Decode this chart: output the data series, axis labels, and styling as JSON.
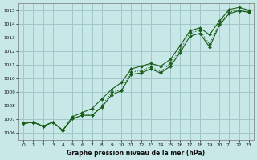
{
  "x": [
    0,
    1,
    2,
    3,
    4,
    5,
    6,
    7,
    8,
    9,
    10,
    11,
    12,
    13,
    14,
    15,
    16,
    17,
    18,
    19,
    20,
    21,
    22,
    23
  ],
  "line_dotted": [
    1006.7,
    1006.8,
    1006.5,
    1006.8,
    1006.2,
    1007.05,
    1007.3,
    1007.3,
    1008.0,
    1009.0,
    1009.15,
    1010.5,
    1010.55,
    1010.85,
    1010.5,
    1011.1,
    1012.1,
    1013.35,
    1013.5,
    1012.5,
    1014.0,
    1014.85,
    1015.0,
    1014.85
  ],
  "line_upper": [
    1006.7,
    1006.8,
    1006.5,
    1006.8,
    1006.2,
    1007.2,
    1007.5,
    1007.8,
    1008.5,
    1009.2,
    1009.7,
    1010.7,
    1010.9,
    1011.1,
    1010.9,
    1011.4,
    1012.4,
    1013.5,
    1013.7,
    1013.2,
    1014.2,
    1015.05,
    1015.2,
    1015.0
  ],
  "line_lower": [
    1006.7,
    1006.8,
    1006.5,
    1006.8,
    1006.2,
    1007.05,
    1007.3,
    1007.3,
    1007.9,
    1008.8,
    1009.1,
    1010.3,
    1010.4,
    1010.7,
    1010.4,
    1010.9,
    1011.9,
    1013.1,
    1013.3,
    1012.3,
    1013.9,
    1014.75,
    1014.95,
    1014.85
  ],
  "bg_color": "#c8e8e8",
  "grid_color": "#a0c8c8",
  "line_color": "#1a5c1a",
  "xlabel": "Graphe pression niveau de la mer (hPa)",
  "ylim": [
    1005.5,
    1015.5
  ],
  "yticks": [
    1006,
    1007,
    1008,
    1009,
    1010,
    1011,
    1012,
    1013,
    1014,
    1015
  ],
  "xticks": [
    0,
    1,
    2,
    3,
    4,
    5,
    6,
    7,
    8,
    9,
    10,
    11,
    12,
    13,
    14,
    15,
    16,
    17,
    18,
    19,
    20,
    21,
    22,
    23
  ],
  "marker_size": 2.0,
  "line_width": 0.8
}
